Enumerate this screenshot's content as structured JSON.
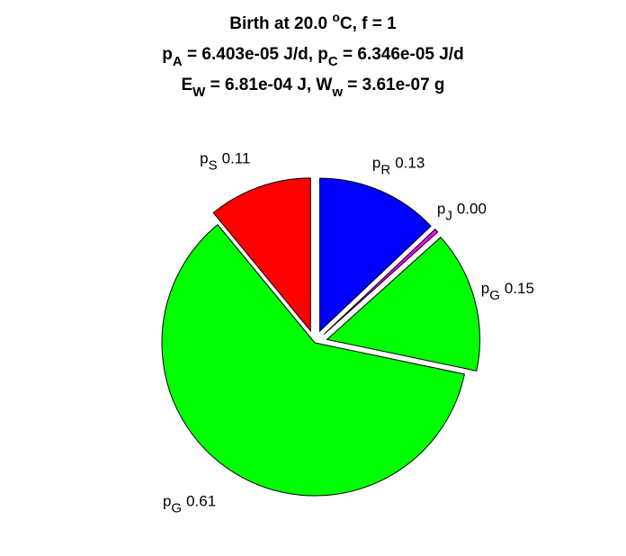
{
  "chart_data": {
    "type": "pie",
    "title": [
      [
        {
          "t": "Birth at 20.0 "
        },
        {
          "sup": "o"
        },
        {
          "t": "C, f = 1"
        }
      ],
      [
        {
          "t": "p"
        },
        {
          "sub": "A"
        },
        {
          "t": " = 6.403e-05 J/d, p"
        },
        {
          "sub": "C"
        },
        {
          "t": " = 6.346e-05 J/d"
        }
      ],
      [
        {
          "t": "E"
        },
        {
          "sub": "W"
        },
        {
          "t": " = 6.81e-04 J, W"
        },
        {
          "sub": "w"
        },
        {
          "t": " = 3.61e-07 g"
        }
      ]
    ],
    "labels": [
      {
        "base": "p",
        "sub": "R"
      },
      {
        "base": "p",
        "sub": "J"
      },
      {
        "base": "p",
        "sub": "G"
      },
      {
        "base": "p",
        "sub": "G"
      },
      {
        "base": "p",
        "sub": "S"
      }
    ],
    "values": [
      0.13,
      0.004,
      0.15,
      0.61,
      0.11
    ],
    "value_labels": [
      "0.13",
      "0.00",
      "0.15",
      "0.61",
      "0.11"
    ],
    "colors": [
      "#0000ff",
      "#ff00ff",
      "#00ff00",
      "#00ff00",
      "#ff0000"
    ],
    "explode": [
      true,
      true,
      true,
      false,
      true
    ]
  }
}
